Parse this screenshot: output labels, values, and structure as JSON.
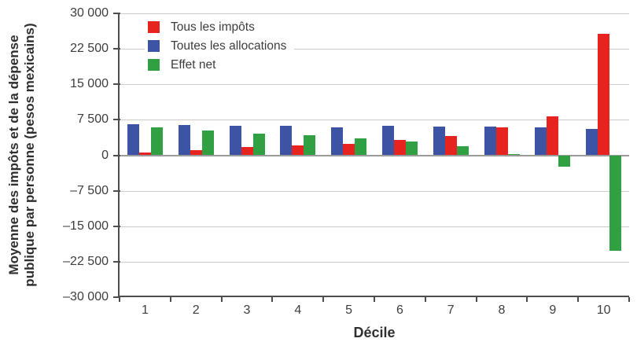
{
  "figure": {
    "ylabel_line1": "Moyenne des impôts et de la dépense",
    "ylabel_line2": "publique par personne (pesos mexicains)"
  },
  "chart_data": {
    "type": "bar",
    "title": "",
    "xlabel": "Décile",
    "ylabel": "Moyenne des impôts et de la dépense publique par personne (pesos mexicains)",
    "categories": [
      "1",
      "2",
      "3",
      "4",
      "5",
      "6",
      "7",
      "8",
      "9",
      "10"
    ],
    "series": [
      {
        "name": "Tous les impôts",
        "color": "#e6231e",
        "values": [
          600,
          1150,
          1700,
          2050,
          2400,
          3250,
          4150,
          5850,
          8300,
          25700
        ]
      },
      {
        "name": "Toutes les allocations",
        "color": "#3d53a4",
        "values": [
          6550,
          6350,
          6300,
          6250,
          5900,
          6150,
          6100,
          6100,
          5900,
          5500
        ]
      },
      {
        "name": "Effet net",
        "color": "#31a042",
        "values": [
          5950,
          5200,
          4600,
          4200,
          3500,
          2900,
          1950,
          250,
          -2400,
          -20200
        ]
      }
    ],
    "bar_draw_order": [
      1,
      0,
      2
    ],
    "ylim": [
      -30000,
      30000
    ],
    "yticks": [
      30000,
      22500,
      15000,
      7500,
      0,
      -7500,
      -15000,
      -22500,
      -30000
    ],
    "ytick_labels": [
      "30 000",
      "22 500",
      "15 000",
      "7 500",
      "0",
      "–7 500",
      "–15 000",
      "–22 500",
      "–30 000"
    ],
    "grid": true,
    "legend_position": "top-left-inside"
  }
}
